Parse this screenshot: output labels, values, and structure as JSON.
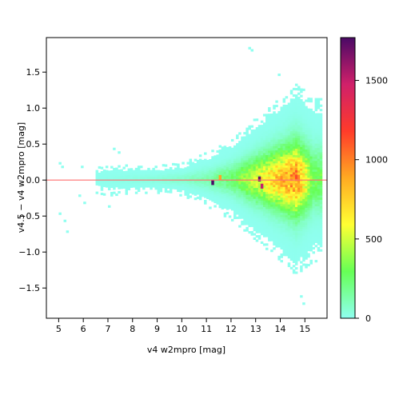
{
  "chart_data": {
    "type": "heatmap",
    "subtype": "2d-histogram",
    "xlabel": "v4 w2mpro [mag]",
    "ylabel": "v4.5 − v4 w2mpro [mag]",
    "xlim": [
      4.5,
      15.9
    ],
    "ylim": [
      -1.92,
      1.98
    ],
    "x_ticks": [
      "5",
      "6",
      "7",
      "8",
      "9",
      "10",
      "11",
      "12",
      "13",
      "14",
      "15"
    ],
    "x_tick_values": [
      5,
      6,
      7,
      8,
      9,
      10,
      11,
      12,
      13,
      14,
      15
    ],
    "y_ticks": [
      "−1.5",
      "−1.0",
      "−0.5",
      "0.0",
      "0.5",
      "1.0",
      "1.5"
    ],
    "y_tick_values": [
      -1.5,
      -1.0,
      -0.5,
      0.0,
      0.5,
      1.0,
      1.5
    ],
    "reference_line": {
      "y": 0.0,
      "color": "#ff6e6e"
    },
    "colorbar": {
      "range": [
        0,
        1770
      ],
      "ticks": [
        "0",
        "500",
        "1000",
        "1500"
      ],
      "tick_values": [
        0,
        500,
        1000,
        1500
      ],
      "colors": [
        "#8ffff0",
        "#66ff55",
        "#ffff33",
        "#ffaa22",
        "#ff3b2a",
        "#d0206a",
        "#4a0a66"
      ]
    },
    "density_profile": [
      {
        "x": 5.0,
        "spread": 0.28,
        "count": 1
      },
      {
        "x": 6.0,
        "spread": 0.25,
        "count": 1
      },
      {
        "x": 6.5,
        "spread": 0.1,
        "count": 8
      },
      {
        "x": 7.0,
        "spread": 0.12,
        "count": 12
      },
      {
        "x": 8.0,
        "spread": 0.1,
        "count": 25
      },
      {
        "x": 9.0,
        "spread": 0.1,
        "count": 40
      },
      {
        "x": 10.0,
        "spread": 0.12,
        "count": 70
      },
      {
        "x": 11.0,
        "spread": 0.2,
        "count": 120
      },
      {
        "x": 12.0,
        "spread": 0.3,
        "count": 250
      },
      {
        "x": 13.0,
        "spread": 0.45,
        "count": 550
      },
      {
        "x": 14.0,
        "spread": 0.6,
        "count": 800
      },
      {
        "x": 14.6,
        "spread": 0.7,
        "count": 950
      },
      {
        "x": 15.3,
        "spread": 0.6,
        "count": 300
      }
    ],
    "hot_spots": [
      {
        "x": 11.2,
        "y": -0.03,
        "count": 1770
      },
      {
        "x": 13.1,
        "y": 0.02,
        "count": 1700
      },
      {
        "x": 13.2,
        "y": -0.08,
        "count": 1500
      },
      {
        "x": 11.5,
        "y": 0.04,
        "count": 900
      }
    ]
  }
}
